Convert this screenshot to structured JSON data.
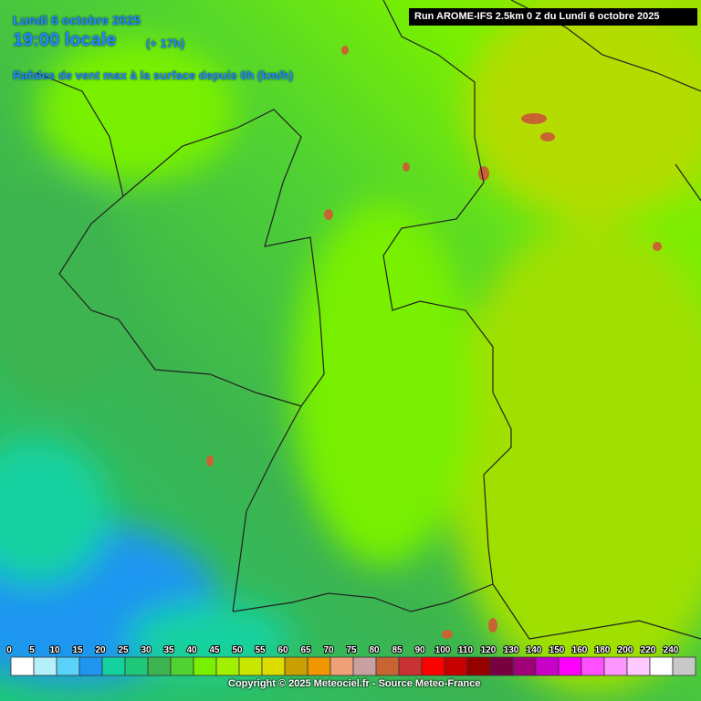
{
  "header": {
    "date": "Lundi 6 octobre 2025",
    "time": "19:00 locale",
    "lead": "(+ 17h)",
    "parameter": "Rafales de vent max à la surface depuis 0h (km/h)",
    "run": "Run AROME-IFS 2.5km 0 Z du Lundi 6 octobre 2025"
  },
  "legend": {
    "items": [
      {
        "label": 0,
        "color": "#ffffff"
      },
      {
        "label": 5,
        "color": "#b4f0fa"
      },
      {
        "label": 10,
        "color": "#5ad2fa"
      },
      {
        "label": 15,
        "color": "#1e96f0"
      },
      {
        "label": 20,
        "color": "#14d2a0"
      },
      {
        "label": 25,
        "color": "#1ec878"
      },
      {
        "label": 30,
        "color": "#3cb450"
      },
      {
        "label": 35,
        "color": "#50d232"
      },
      {
        "label": 40,
        "color": "#78f000"
      },
      {
        "label": 45,
        "color": "#a0f000"
      },
      {
        "label": 50,
        "color": "#c8e600"
      },
      {
        "label": 55,
        "color": "#dcdc00"
      },
      {
        "label": 60,
        "color": "#c8a000"
      },
      {
        "label": 65,
        "color": "#f09600"
      },
      {
        "label": 70,
        "color": "#f0a078"
      },
      {
        "label": 75,
        "color": "#c8a0a0"
      },
      {
        "label": 80,
        "color": "#c86432"
      },
      {
        "label": 85,
        "color": "#c83232"
      },
      {
        "label": 90,
        "color": "#ff0000"
      },
      {
        "label": 100,
        "color": "#c80000"
      },
      {
        "label": 110,
        "color": "#960000"
      },
      {
        "label": 120,
        "color": "#780040"
      },
      {
        "label": 130,
        "color": "#a00078"
      },
      {
        "label": 140,
        "color": "#c800c8"
      },
      {
        "label": 150,
        "color": "#ff00ff"
      },
      {
        "label": 160,
        "color": "#ff50ff"
      },
      {
        "label": 180,
        "color": "#ff96ff"
      },
      {
        "label": 200,
        "color": "#ffc8ff"
      },
      {
        "label": 220,
        "color": "#ffffff"
      },
      {
        "label": 240,
        "color": "#c8c8c8"
      }
    ]
  },
  "footer": {
    "copyright": "Copyright © 2025 Meteociel.fr - Source Meteo-France"
  }
}
